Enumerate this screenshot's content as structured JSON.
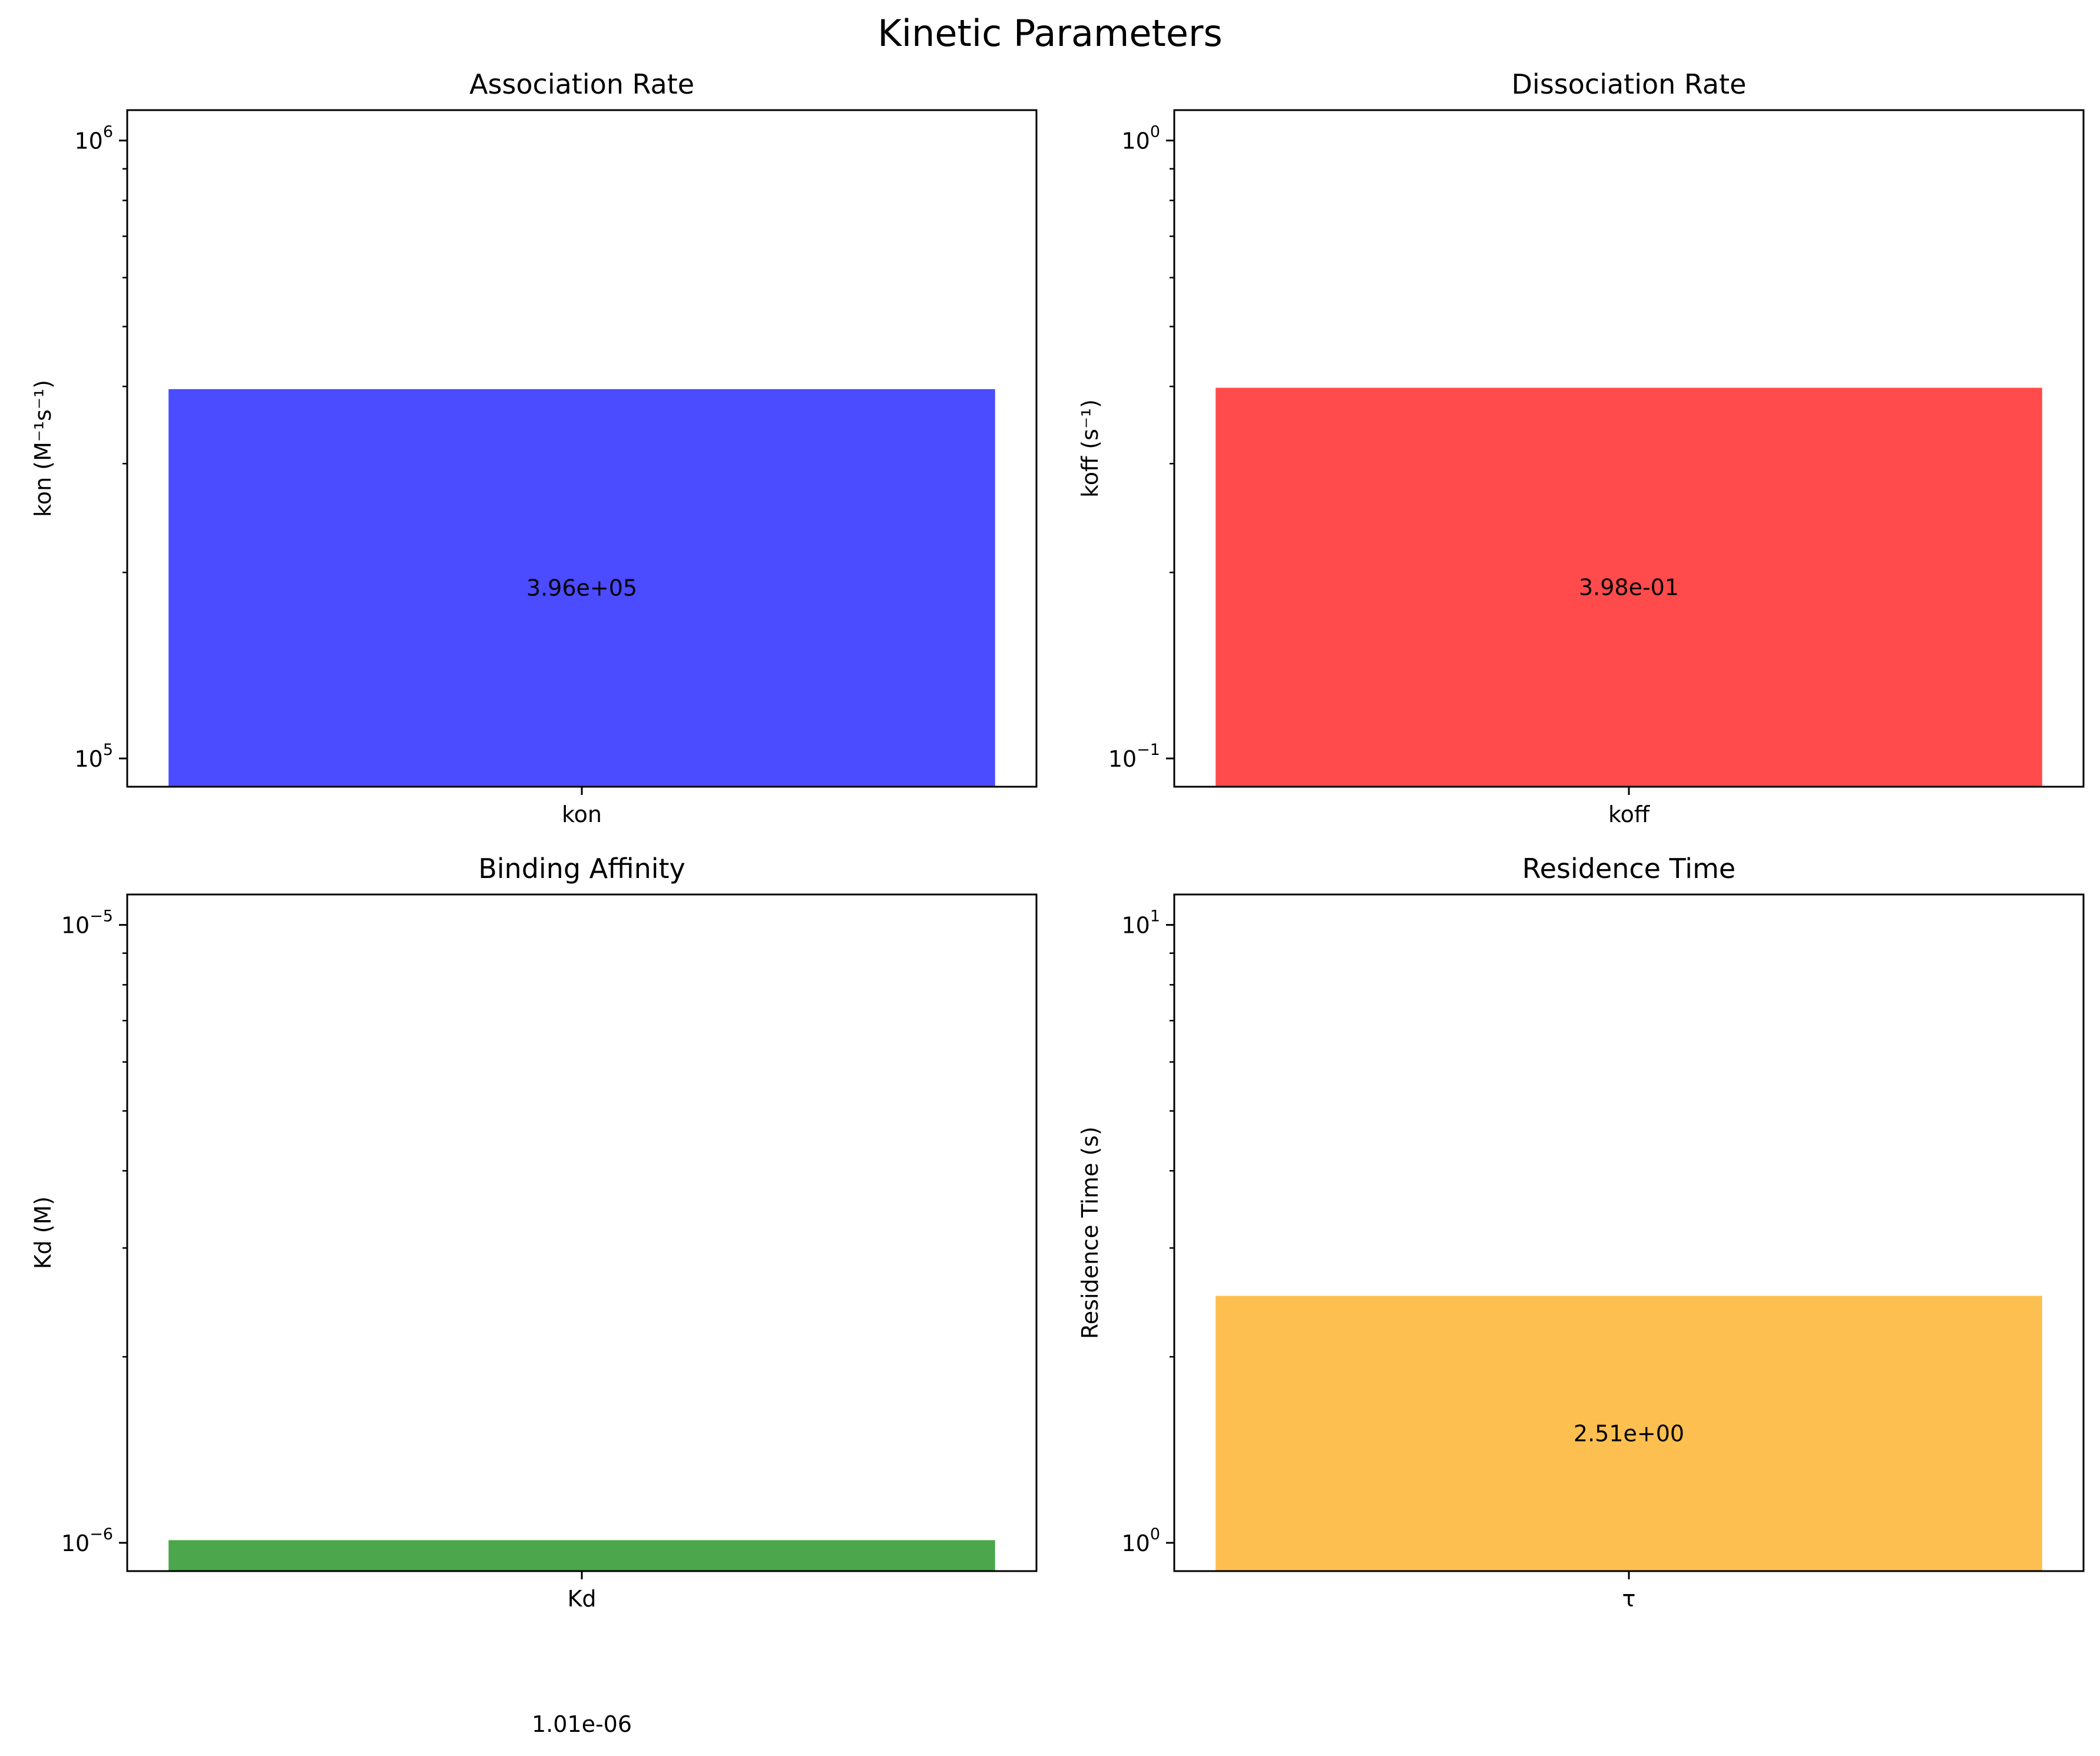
{
  "suptitle": "Kinetic Parameters",
  "chart_data": [
    {
      "type": "bar",
      "title": "Association Rate",
      "xlabel": "",
      "ylabel": "kon (M⁻¹s⁻¹)",
      "yscale": "log",
      "categories": [
        "kon"
      ],
      "values": [
        396000
      ],
      "value_labels": [
        "3.96e+05"
      ],
      "ylim": [
        90000,
        1120000
      ],
      "yticks": [
        {
          "base": "10",
          "exp": "5",
          "value": 100000
        },
        {
          "base": "10",
          "exp": "6",
          "value": 1000000
        }
      ],
      "color": "#4b4bff",
      "grid": false
    },
    {
      "type": "bar",
      "title": "Dissociation Rate",
      "xlabel": "",
      "ylabel": "koff (s⁻¹)",
      "yscale": "log",
      "categories": [
        "koff"
      ],
      "values": [
        0.398
      ],
      "value_labels": [
        "3.98e-01"
      ],
      "ylim": [
        0.09,
        1.12
      ],
      "yticks": [
        {
          "base": "10",
          "exp": "−1",
          "value": 0.1
        },
        {
          "base": "10",
          "exp": "0",
          "value": 1
        }
      ],
      "color": "#ff4b4b",
      "grid": false
    },
    {
      "type": "bar",
      "title": "Binding Affinity",
      "xlabel": "",
      "ylabel": "Kd (M)",
      "yscale": "log",
      "categories": [
        "Kd"
      ],
      "values": [
        1.01e-06
      ],
      "value_labels": [
        "1.01e-06"
      ],
      "ylim": [
        9e-07,
        1.12e-05
      ],
      "yticks": [
        {
          "base": "10",
          "exp": "−6",
          "value": 1e-06
        },
        {
          "base": "10",
          "exp": "−5",
          "value": 1e-05
        }
      ],
      "color": "#4ca64c",
      "grid": false
    },
    {
      "type": "bar",
      "title": "Residence Time",
      "xlabel": "",
      "ylabel": "Residence Time (s)",
      "yscale": "log",
      "categories": [
        "τ"
      ],
      "values": [
        2.51
      ],
      "value_labels": [
        "2.51e+00"
      ],
      "ylim": [
        0.9,
        11.2
      ],
      "yticks": [
        {
          "base": "10",
          "exp": "0",
          "value": 1
        },
        {
          "base": "10",
          "exp": "1",
          "value": 10
        }
      ],
      "color": "#fdbf4f",
      "grid": false
    }
  ]
}
